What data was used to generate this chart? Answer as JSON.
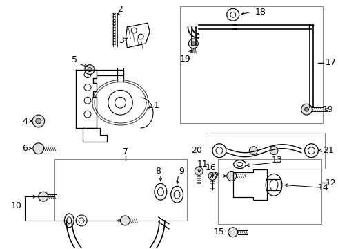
{
  "bg": "#ffffff",
  "lc": "#000000",
  "fig_w": 4.9,
  "fig_h": 3.6,
  "dpi": 100
}
